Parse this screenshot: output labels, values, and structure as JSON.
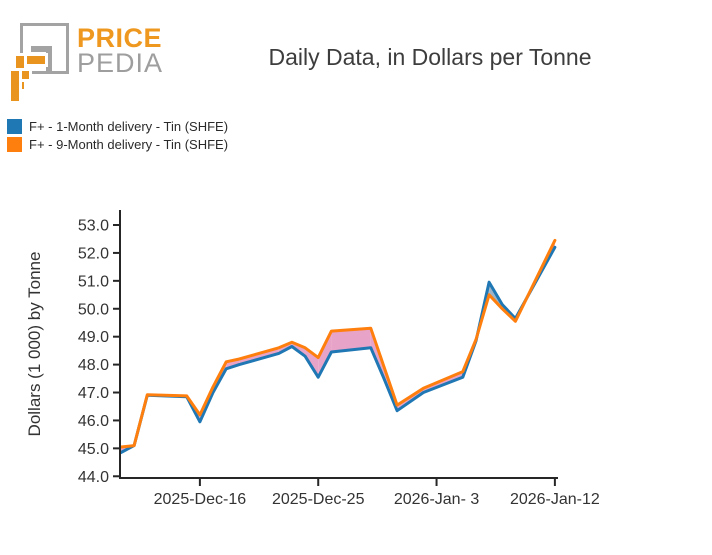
{
  "header": {
    "logo": {
      "line1": "PRICE",
      "line2": "PEDIA"
    },
    "title": "Daily Data, in Dollars per Tonne"
  },
  "legend": {
    "items": [
      {
        "label": "F+ - 1-Month delivery - Tin (SHFE)",
        "color": "#1f77b4"
      },
      {
        "label": "F+ - 9-Month delivery - Tin (SHFE)",
        "color": "#ff7f0e"
      }
    ]
  },
  "chart_data": {
    "type": "line",
    "title": "Daily Data, in Dollars per Tonne",
    "xlabel": "",
    "ylabel": "Dollars (1 000) by Tonne",
    "ylim": [
      44.0,
      53.0
    ],
    "grid": false,
    "legend_position": "top-left",
    "axis_color": "#262626",
    "tick_label_color": "#333333",
    "fill_colors": {
      "orange_above": "#e7a3c8",
      "blue_above": "#9db4c8"
    },
    "yticks": [
      "44.0",
      "45.0",
      "46.0",
      "47.0",
      "48.0",
      "49.0",
      "50.0",
      "51.0",
      "52.0",
      "53.0"
    ],
    "xticks": [
      {
        "label": "2025-Dec-16",
        "day": 6
      },
      {
        "label": "2025-Dec-25",
        "day": 15
      },
      {
        "label": "2026-Jan- 3",
        "day": 24
      },
      {
        "label": "2026-Jan-12",
        "day": 33
      }
    ],
    "x_dates": [
      "2025-12-10",
      "2025-12-11",
      "2025-12-12",
      "2025-12-15",
      "2025-12-16",
      "2025-12-17",
      "2025-12-18",
      "2025-12-19",
      "2025-12-22",
      "2025-12-23",
      "2025-12-24",
      "2025-12-25",
      "2025-12-26",
      "2025-12-29",
      "2025-12-30",
      "2025-12-31",
      "2026-01-02",
      "2026-01-05",
      "2026-01-06",
      "2026-01-07",
      "2026-01-08",
      "2026-01-09",
      "2026-01-12"
    ],
    "day_offsets": [
      0,
      1,
      2,
      5,
      6,
      7,
      8,
      9,
      12,
      13,
      14,
      15,
      16,
      19,
      20,
      21,
      23,
      26,
      27,
      28,
      29,
      30,
      33
    ],
    "series": [
      {
        "name": "F+ - 1-Month delivery - Tin (SHFE)",
        "color": "#1f77b4",
        "values": [
          44.85,
          45.1,
          46.9,
          46.85,
          45.95,
          47.0,
          47.85,
          48.0,
          48.4,
          48.65,
          48.3,
          47.55,
          48.45,
          48.6,
          47.5,
          46.35,
          47.0,
          47.55,
          48.85,
          50.95,
          50.15,
          49.65,
          52.2
        ]
      },
      {
        "name": "F+ - 9-Month delivery - Tin (SHFE)",
        "color": "#ff7f0e",
        "values": [
          45.05,
          45.1,
          46.92,
          46.88,
          46.2,
          47.2,
          48.1,
          48.2,
          48.6,
          48.8,
          48.6,
          48.25,
          49.2,
          49.3,
          47.92,
          46.55,
          47.15,
          47.75,
          48.9,
          50.5,
          50.0,
          49.55,
          52.45
        ]
      }
    ]
  }
}
